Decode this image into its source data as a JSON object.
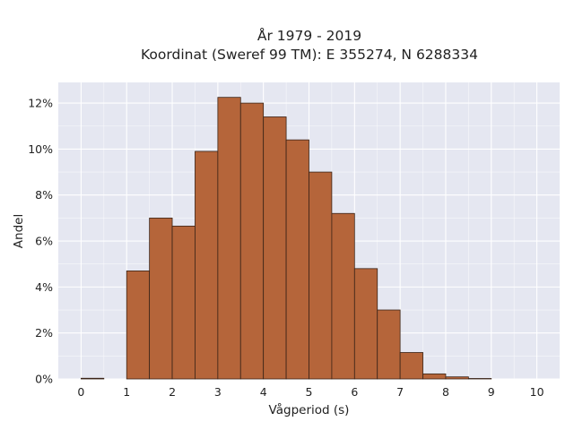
{
  "chart_data": {
    "type": "bar",
    "title": "År 1979 - 2019",
    "subtitle": "Koordinat (Sweref 99 TM): E 355274, N 6288334",
    "xlabel": "Vågperiod (s)",
    "ylabel": "Andel",
    "xlim": [
      -0.5,
      10.5
    ],
    "ylim": [
      0,
      0.129
    ],
    "bin_width": 0.5,
    "x_ticks": [
      0,
      1,
      2,
      3,
      4,
      5,
      6,
      7,
      8,
      9,
      10
    ],
    "x_tick_labels": [
      "0",
      "1",
      "2",
      "3",
      "4",
      "5",
      "6",
      "7",
      "8",
      "9",
      "10"
    ],
    "y_ticks": [
      0,
      0.02,
      0.04,
      0.06,
      0.08,
      0.1,
      0.12
    ],
    "y_tick_labels": [
      "0%",
      "2%",
      "4%",
      "6%",
      "8%",
      "10%",
      "12%"
    ],
    "grid": true,
    "bins": [
      {
        "x0": 0.0,
        "x1": 0.5,
        "value": 0.0003
      },
      {
        "x0": 0.5,
        "x1": 1.0,
        "value": 0.0
      },
      {
        "x0": 1.0,
        "x1": 1.5,
        "value": 0.047
      },
      {
        "x0": 1.5,
        "x1": 2.0,
        "value": 0.07
      },
      {
        "x0": 2.0,
        "x1": 2.5,
        "value": 0.0665
      },
      {
        "x0": 2.5,
        "x1": 3.0,
        "value": 0.099
      },
      {
        "x0": 3.0,
        "x1": 3.5,
        "value": 0.1225
      },
      {
        "x0": 3.5,
        "x1": 4.0,
        "value": 0.12
      },
      {
        "x0": 4.0,
        "x1": 4.5,
        "value": 0.114
      },
      {
        "x0": 4.5,
        "x1": 5.0,
        "value": 0.104
      },
      {
        "x0": 5.0,
        "x1": 5.5,
        "value": 0.09
      },
      {
        "x0": 5.5,
        "x1": 6.0,
        "value": 0.072
      },
      {
        "x0": 6.0,
        "x1": 6.5,
        "value": 0.048
      },
      {
        "x0": 6.5,
        "x1": 7.0,
        "value": 0.03
      },
      {
        "x0": 7.0,
        "x1": 7.5,
        "value": 0.0115
      },
      {
        "x0": 7.5,
        "x1": 8.0,
        "value": 0.0022
      },
      {
        "x0": 8.0,
        "x1": 8.5,
        "value": 0.0009
      },
      {
        "x0": 8.5,
        "x1": 9.0,
        "value": 0.0002
      }
    ],
    "colors": {
      "bar_fill": "#b5653a",
      "bar_edge": "#3a2418",
      "plot_background": "#e5e7f1",
      "grid": "#ffffff"
    }
  }
}
